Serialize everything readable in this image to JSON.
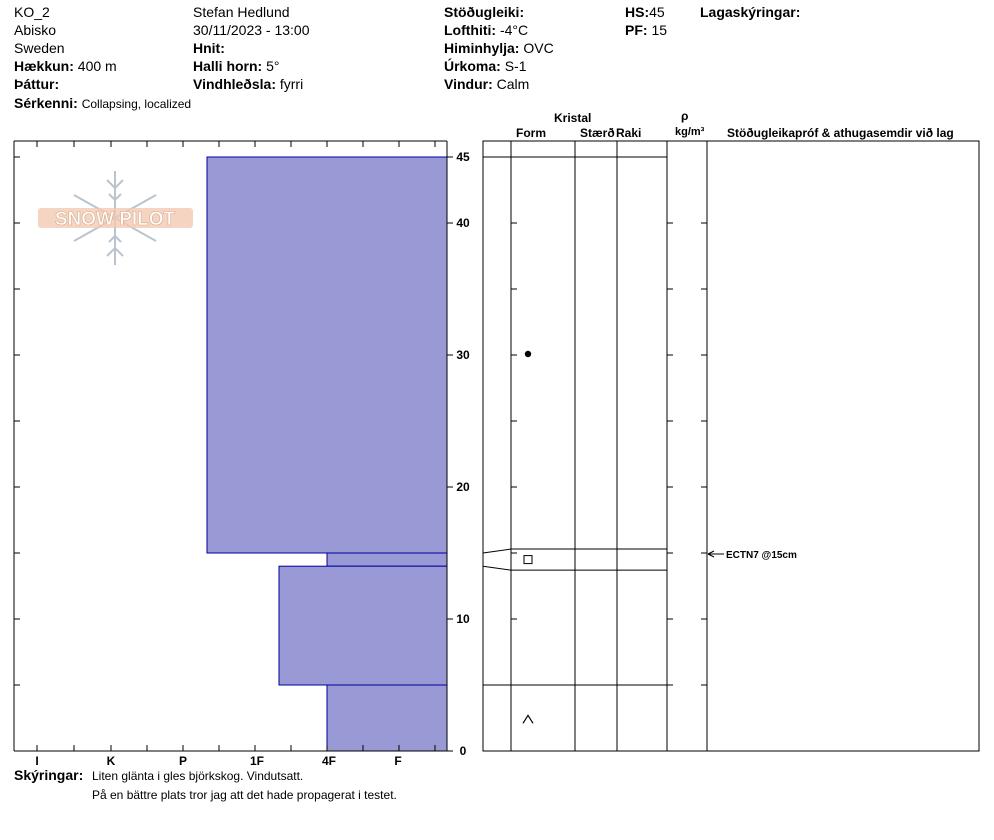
{
  "header": {
    "site_id": "KO_2",
    "location": "Abisko",
    "country": "Sweden",
    "elevation_label": "Hækkun:",
    "elevation_value": "400 m",
    "aspect_label": "Þáttur:",
    "aspect_value": "",
    "characteristics_label": "Sérkenni:",
    "characteristics_value": "Collapsing, localized",
    "observer": "Stefan Hedlund",
    "datetime": "30/11/2023 - 13:00",
    "coords_label": "Hnit:",
    "coords_value": "",
    "slope_label": "Halli horn:",
    "slope_value": "5°",
    "wind_loading_label": "Vindhleðsla:",
    "wind_loading_value": "fyrri",
    "stability_label": "Stöðugleiki:",
    "stability_value": "",
    "air_temp_label": "Lofthiti:",
    "air_temp_value": "-4°C",
    "sky_label": "Himinhylja:",
    "sky_value": "OVC",
    "precip_label": "Úrkoma:",
    "precip_value": "S-1",
    "wind_label": "Vindur:",
    "wind_value": "Calm",
    "hs_label": "HS:",
    "hs_value": "45",
    "pf_label": "PF:",
    "pf_value": "15",
    "layer_notes_label": "Lagaskýringar:",
    "layer_notes_value": ""
  },
  "columns": {
    "crystal": "Kristal",
    "form": "Form",
    "size": "Stærð",
    "moisture": "Raki",
    "rho": "ρ",
    "density_unit": "kg/m³",
    "stability_tests": "Stöðugleikapróf & athugasemdir við lag"
  },
  "chart_data": {
    "type": "bar",
    "title": "",
    "x_categories": [
      "I",
      "K",
      "P",
      "1F",
      "4F",
      "F"
    ],
    "y_label": "",
    "y_range": [
      0,
      45
    ],
    "y_ticks": [
      0,
      10,
      20,
      30,
      40,
      45
    ],
    "hardness_layers": [
      {
        "bottom": 15,
        "top": 45,
        "hardness": "1F-"
      },
      {
        "bottom": 14,
        "top": 15,
        "hardness": "4F"
      },
      {
        "bottom": 5,
        "top": 14,
        "hardness": "1F+"
      },
      {
        "bottom": 0,
        "top": 5,
        "hardness": "4F"
      }
    ],
    "grain_layers": [
      {
        "bottom": 15.3,
        "top": 45
      },
      {
        "bottom": 13.7,
        "top": 15.3
      },
      {
        "bottom": 5,
        "top": 13.7
      },
      {
        "bottom": 0,
        "top": 5
      }
    ],
    "grain_symbols": [
      {
        "depth": 30,
        "symbol": "rounded-grain"
      },
      {
        "depth": 14.5,
        "symbol": "faceted-crystal"
      },
      {
        "depth": 2.4,
        "symbol": "depth-hoar"
      }
    ],
    "stability_test": {
      "depth": 15,
      "label": "ECTN7 @15cm"
    },
    "fill_color": "#9999d6",
    "stroke_color": "#00009c"
  },
  "watermark": {
    "text": "SNOW PILOT"
  },
  "footer": {
    "notes_label": "Skýringar:",
    "notes_line1": "Liten glänta i gles björkskog. Vindutsatt.",
    "notes_line2": "På en bättre plats tror jag att det hade propagerat i testet."
  }
}
